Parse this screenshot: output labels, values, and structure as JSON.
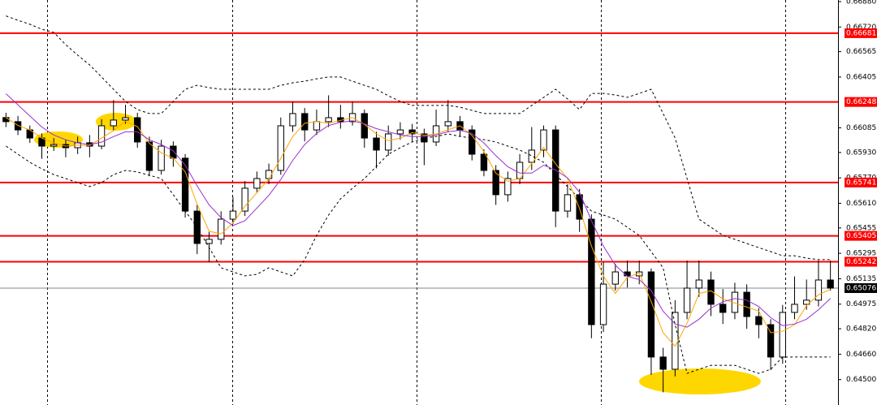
{
  "chart_data": {
    "type": "candlestick",
    "ylim": [
      0.6434,
      0.6689
    ],
    "yticks": [
      {
        "value": 0.6688,
        "label": "0.66880"
      },
      {
        "value": 0.6672,
        "label": "0.66720"
      },
      0.66565,
      0.66405,
      0.66085,
      {
        "value": 0.6593,
        "label": "0.65930"
      },
      {
        "value": 0.6577,
        "label": "0.65770"
      },
      {
        "value": 0.6561,
        "label": "0.65610"
      },
      0.65455,
      0.65295,
      0.65135,
      0.64975,
      {
        "value": 0.6482,
        "label": "0.64820"
      },
      {
        "value": 0.6466,
        "label": "0.64660"
      },
      {
        "value": 0.645,
        "label": "0.64500"
      }
    ],
    "levels": [
      0.66681,
      0.66248,
      0.65741,
      0.65405,
      0.65242
    ],
    "level_color": "#ff0000",
    "current_price": 0.65076,
    "up_color": "#ffffff",
    "down_color": "#000000",
    "open": [
      0.6615,
      0.66124,
      0.66072,
      0.66021,
      0.6597,
      0.6598,
      0.6596,
      0.65991,
      0.6597,
      0.66098,
      0.66134,
      0.66149,
      0.65996,
      0.65817,
      0.6597,
      0.65894,
      0.65561,
      0.65357,
      0.65383,
      0.6551,
      0.65561,
      0.65705,
      0.65766,
      0.65817,
      0.66098,
      0.66175,
      0.66072,
      0.66124,
      0.66149,
      0.66124,
      0.66175,
      0.66021,
      0.65945,
      0.66047,
      0.66072,
      0.66047,
      0.65996,
      0.66098,
      0.66124,
      0.66072,
      0.65919,
      0.65817,
      0.65664,
      0.65766,
      0.65868,
      0.65945,
      0.66072,
      0.65561,
      0.65664,
      0.6551,
      0.64846,
      0.65101,
      0.65178,
      0.65153,
      0.65178,
      0.64642,
      0.64565,
      0.64923,
      0.65076,
      0.65127,
      0.64974,
      0.64923,
      0.6505,
      0.64897,
      0.64846,
      0.64642,
      0.64923,
      0.64974,
      0.65,
      0.65127
    ],
    "high": [
      0.6618,
      0.6616,
      0.661,
      0.6605,
      0.6602,
      0.6601,
      0.6603,
      0.6604,
      0.6614,
      0.6626,
      0.6623,
      0.6618,
      0.6603,
      0.6601,
      0.66,
      0.6592,
      0.656,
      0.6543,
      0.6556,
      0.6565,
      0.6575,
      0.6581,
      0.6586,
      0.6615,
      0.6625,
      0.6621,
      0.662,
      0.6629,
      0.6623,
      0.6625,
      0.662,
      0.6606,
      0.661,
      0.6612,
      0.6611,
      0.6608,
      0.662,
      0.6626,
      0.6616,
      0.661,
      0.6595,
      0.6585,
      0.6581,
      0.6592,
      0.6609,
      0.661,
      0.661,
      0.6573,
      0.657,
      0.6554,
      0.6524,
      0.6523,
      0.6525,
      0.6525,
      0.652,
      0.647,
      0.65,
      0.6525,
      0.6525,
      0.6518,
      0.6507,
      0.6511,
      0.651,
      0.6495,
      0.6488,
      0.6497,
      0.6515,
      0.6513,
      0.6525,
      0.6525
    ],
    "low": [
      0.6609,
      0.6604,
      0.6599,
      0.6589,
      0.6594,
      0.659,
      0.6592,
      0.659,
      0.6595,
      0.6607,
      0.6611,
      0.6596,
      0.6578,
      0.6579,
      0.6584,
      0.6552,
      0.6529,
      0.6524,
      0.6535,
      0.6548,
      0.6553,
      0.6568,
      0.6573,
      0.6579,
      0.6606,
      0.66,
      0.6604,
      0.6609,
      0.6608,
      0.661,
      0.6596,
      0.6583,
      0.6591,
      0.6601,
      0.66,
      0.6585,
      0.6597,
      0.6606,
      0.6603,
      0.6588,
      0.6578,
      0.656,
      0.6562,
      0.6573,
      0.6582,
      0.659,
      0.6546,
      0.6552,
      0.6543,
      0.6476,
      0.648,
      0.6506,
      0.6508,
      0.651,
      0.6453,
      0.6442,
      0.6452,
      0.6488,
      0.6502,
      0.649,
      0.6485,
      0.6488,
      0.6482,
      0.6476,
      0.6456,
      0.646,
      0.6488,
      0.6494,
      0.6496,
      0.6506
    ],
    "close": [
      0.66124,
      0.66072,
      0.66021,
      0.6597,
      0.6598,
      0.6596,
      0.65991,
      0.6597,
      0.66098,
      0.66134,
      0.66149,
      0.65996,
      0.65817,
      0.6597,
      0.65894,
      0.65561,
      0.65357,
      0.65383,
      0.6551,
      0.65561,
      0.65705,
      0.65766,
      0.65817,
      0.66098,
      0.66175,
      0.66072,
      0.66124,
      0.66149,
      0.66124,
      0.66175,
      0.66021,
      0.65945,
      0.66047,
      0.66072,
      0.66047,
      0.65996,
      0.66098,
      0.66124,
      0.66072,
      0.65919,
      0.65817,
      0.65664,
      0.65766,
      0.65868,
      0.65945,
      0.66072,
      0.65561,
      0.65664,
      0.6551,
      0.64846,
      0.65101,
      0.65178,
      0.65153,
      0.65178,
      0.64642,
      0.64565,
      0.64923,
      0.65076,
      0.65127,
      0.64974,
      0.64923,
      0.6505,
      0.64897,
      0.64846,
      0.64642,
      0.64923,
      0.64974,
      0.65,
      0.65127,
      0.65076
    ],
    "overlays": [
      {
        "color": "#000000",
        "dashed": true,
        "values": [
          0.6679,
          0.66762,
          0.66737,
          0.66706,
          0.66686,
          0.66609,
          0.66543,
          0.66481,
          0.66405,
          0.66328,
          0.66251,
          0.662,
          0.66175,
          0.66175,
          0.66251,
          0.66328,
          0.66353,
          0.66338,
          0.66328,
          0.66328,
          0.66328,
          0.66328,
          0.66328,
          0.66353,
          0.66369,
          0.66379,
          0.66394,
          0.66405,
          0.66405,
          0.66379,
          0.66353,
          0.66328,
          0.66287,
          0.66251,
          0.66226,
          0.66226,
          0.66226,
          0.66226,
          0.66215,
          0.66195,
          0.66175,
          0.66175,
          0.66175,
          0.66175,
          0.66226,
          0.66277,
          0.66328,
          0.66267,
          0.662,
          0.66302,
          0.66302,
          0.66292,
          0.66277,
          0.66302,
          0.66328,
          0.66175,
          0.66021,
          0.65766,
          0.6551,
          0.65459,
          0.65408,
          0.65383,
          0.65357,
          0.65331,
          0.65306,
          0.6528,
          0.6528,
          0.65265,
          0.65255,
          0.65255
        ]
      },
      {
        "color": "#000000",
        "dashed": true,
        "values": [
          0.6597,
          0.65919,
          0.65868,
          0.65827,
          0.65791,
          0.65766,
          0.6574,
          0.65715,
          0.6574,
          0.65791,
          0.65817,
          0.65807,
          0.65786,
          0.65766,
          0.65664,
          0.65561,
          0.65459,
          0.65331,
          0.65204,
          0.65178,
          0.65153,
          0.65163,
          0.65204,
          0.65178,
          0.65153,
          0.65255,
          0.65408,
          0.65536,
          0.65638,
          0.65705,
          0.65766,
          0.65842,
          0.65919,
          0.6596,
          0.65996,
          0.66021,
          0.66031,
          0.66047,
          0.66031,
          0.66021,
          0.66011,
          0.65996,
          0.6597,
          0.65945,
          0.65909,
          0.65868,
          0.65791,
          0.65715,
          0.65638,
          0.65561,
          0.65536,
          0.6551,
          0.65459,
          0.65408,
          0.65306,
          0.65204,
          0.64846,
          0.64539,
          0.64565,
          0.6459,
          0.6459,
          0.6459,
          0.64565,
          0.64539,
          0.64565,
          0.64642,
          0.64642,
          0.64642,
          0.64642,
          0.64642
        ]
      },
      {
        "color": "#ffa500",
        "dashed": false,
        "values": [
          0.6615,
          0.661,
          0.66072,
          0.66021,
          0.6599,
          0.6597,
          0.65977,
          0.65974,
          0.6602,
          0.66067,
          0.66127,
          0.66093,
          0.65987,
          0.65928,
          0.65894,
          0.65808,
          0.65604,
          0.65434,
          0.65417,
          0.65485,
          0.65592,
          0.65677,
          0.65763,
          0.65894,
          0.6603,
          0.66115,
          0.66124,
          0.66115,
          0.66132,
          0.66149,
          0.66107,
          0.66047,
          0.66004,
          0.66021,
          0.66055,
          0.66038,
          0.66047,
          0.66073,
          0.66098,
          0.66038,
          0.65936,
          0.658,
          0.65749,
          0.65766,
          0.6586,
          0.65962,
          0.65859,
          0.65766,
          0.65578,
          0.6534,
          0.65152,
          0.65042,
          0.65144,
          0.6517,
          0.64991,
          0.64795,
          0.6471,
          0.64855,
          0.65042,
          0.65059,
          0.65008,
          0.64982,
          0.64957,
          0.64931,
          0.64795,
          0.64804,
          0.64846,
          0.64966,
          0.65034,
          0.65068
        ]
      },
      {
        "color": "#9932cc",
        "dashed": false,
        "values": [
          0.663,
          0.6623,
          0.6616,
          0.6609,
          0.6604,
          0.6601,
          0.6599,
          0.6598,
          0.65995,
          0.6603,
          0.6606,
          0.6606,
          0.6601,
          0.6598,
          0.6594,
          0.6585,
          0.6572,
          0.656,
          0.6552,
          0.6547,
          0.655,
          0.6558,
          0.6566,
          0.6576,
          0.6588,
          0.6598,
          0.6605,
          0.661,
          0.6612,
          0.6613,
          0.6611,
          0.6608,
          0.6606,
          0.6604,
          0.6603,
          0.6603,
          0.6604,
          0.6606,
          0.6607,
          0.6605,
          0.6599,
          0.6591,
          0.6584,
          0.658,
          0.658,
          0.6585,
          0.6582,
          0.6577,
          0.6568,
          0.655,
          0.6534,
          0.6522,
          0.6515,
          0.6513,
          0.6506,
          0.6493,
          0.6485,
          0.6483,
          0.6488,
          0.6495,
          0.6499,
          0.6501,
          0.65,
          0.6496,
          0.6489,
          0.6484,
          0.6485,
          0.6488,
          0.6494,
          0.6501
        ]
      }
    ]
  }
}
